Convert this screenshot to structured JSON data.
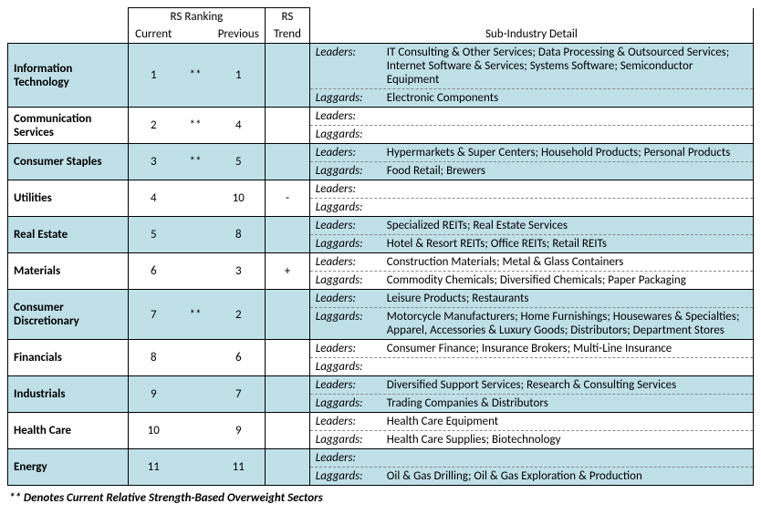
{
  "headers": {
    "rs_ranking": "RS Ranking",
    "current": "Current",
    "previous": "Previous",
    "rs_trend_1": "RS",
    "rs_trend_2": "Trend",
    "sub_industry": "Sub-Industry Detail",
    "leaders_label": "Leaders:",
    "laggards_label": "Laggards:"
  },
  "rows": [
    {
      "sector": "Information Technology",
      "current": "1",
      "mark": "**",
      "previous": "1",
      "trend": "",
      "leaders": "IT Consulting & Other Services; Data Processing & Outsourced Services; Internet Software & Services; Systems Software; Semiconductor Equipment",
      "laggards": "Electronic Components",
      "shaded": true
    },
    {
      "sector": "Communication Services",
      "current": "2",
      "mark": "**",
      "previous": "4",
      "trend": "",
      "leaders": "",
      "laggards": "",
      "shaded": false
    },
    {
      "sector": "Consumer Staples",
      "current": "3",
      "mark": "**",
      "previous": "5",
      "trend": "",
      "leaders": "Hypermarkets & Super Centers; Household Products; Personal Products",
      "laggards": "Food Retail; Brewers",
      "shaded": true
    },
    {
      "sector": "Utilities",
      "current": "4",
      "mark": "",
      "previous": "10",
      "trend": "-",
      "leaders": "",
      "laggards": "",
      "shaded": false
    },
    {
      "sector": "Real Estate",
      "current": "5",
      "mark": "",
      "previous": "8",
      "trend": "",
      "leaders": "Specialized REITs; Real Estate Services",
      "laggards": "Hotel & Resort REITs; Office REITs; Retail REITs",
      "shaded": true
    },
    {
      "sector": "Materials",
      "current": "6",
      "mark": "",
      "previous": "3",
      "trend": "+",
      "leaders": "Construction Materials; Metal & Glass Containers",
      "laggards": "Commodity Chemicals; Diversified Chemicals; Paper Packaging",
      "shaded": false
    },
    {
      "sector": "Consumer Discretionary",
      "current": "7",
      "mark": "**",
      "previous": "2",
      "trend": "",
      "leaders": "Leisure Products; Restaurants",
      "laggards": "Motorcycle Manufacturers; Home Furnishings; Housewares & Specialties; Apparel, Accessories & Luxury Goods; Distributors; Department Stores",
      "shaded": true
    },
    {
      "sector": "Financials",
      "current": "8",
      "mark": "",
      "previous": "6",
      "trend": "",
      "leaders": "Consumer Finance; Insurance Brokers; Multi-Line Insurance",
      "laggards": "",
      "shaded": false
    },
    {
      "sector": "Industrials",
      "current": "9",
      "mark": "",
      "previous": "7",
      "trend": "",
      "leaders": "Diversified Support Services; Research & Consulting Services",
      "laggards": "Trading Companies & Distributors",
      "shaded": true
    },
    {
      "sector": "Health Care",
      "current": "10",
      "mark": "",
      "previous": "9",
      "trend": "",
      "leaders": "Health Care Equipment",
      "laggards": "Health Care Supplies; Biotechnology",
      "shaded": false
    },
    {
      "sector": "Energy",
      "current": "11",
      "mark": "",
      "previous": "11",
      "trend": "",
      "leaders": "",
      "laggards": "Oil & Gas Drilling; Oil & Gas Exploration & Production",
      "shaded": true
    }
  ],
  "footnote": "** Denotes Current Relative Strength-Based Overweight Sectors",
  "colors": {
    "shade": "#c0e0e8",
    "border": "#000000",
    "dash": "#888888"
  }
}
